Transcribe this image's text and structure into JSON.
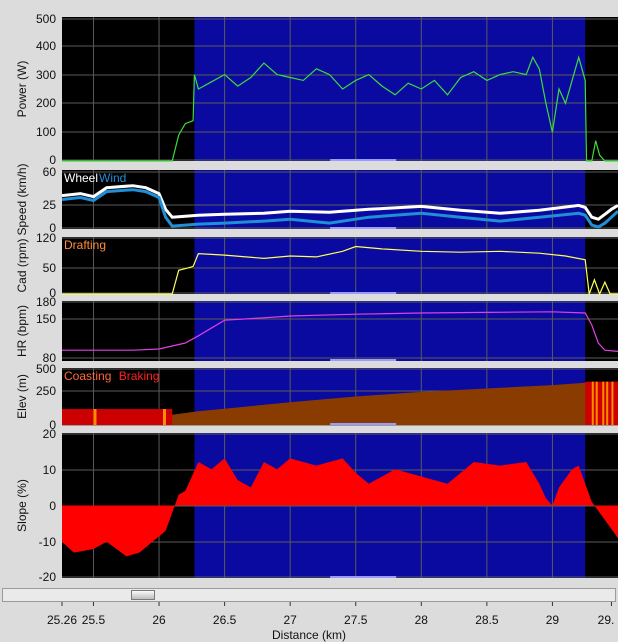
{
  "chart_data": {
    "type": "line",
    "xlabel": "Distance (km)",
    "x_ticks": [
      "25.26",
      "25.5",
      "26",
      "26.5",
      "27",
      "27.5",
      "28",
      "28.5",
      "29",
      "29."
    ],
    "x_range": [
      25.26,
      29.5
    ],
    "selection_range": [
      26.27,
      29.25
    ],
    "panels": [
      {
        "id": "power",
        "ylabel": "Power (W)",
        "ylim": [
          0,
          500
        ],
        "yticks": [
          "500",
          "400",
          "300",
          "200",
          "100",
          "0"
        ],
        "series": [
          {
            "name": "",
            "color": "#3cdc3c",
            "x": [
              25.26,
              26.1,
              26.15,
              26.2,
              26.26,
              26.27,
              26.3,
              26.4,
              26.5,
              26.6,
              26.7,
              26.8,
              26.9,
              27.0,
              27.1,
              27.2,
              27.3,
              27.4,
              27.5,
              27.6,
              27.7,
              27.8,
              27.9,
              28.0,
              28.1,
              28.2,
              28.3,
              28.4,
              28.5,
              28.6,
              28.7,
              28.8,
              28.85,
              28.9,
              28.95,
              29.0,
              29.05,
              29.1,
              29.15,
              29.2,
              29.25,
              29.26,
              29.3,
              29.33,
              29.36,
              29.4,
              29.5
            ],
            "y": [
              0,
              0,
              90,
              130,
              140,
              300,
              250,
              275,
              300,
              260,
              290,
              340,
              300,
              290,
              280,
              320,
              300,
              250,
              280,
              300,
              260,
              230,
              270,
              250,
              280,
              230,
              290,
              310,
              280,
              300,
              310,
              300,
              360,
              320,
              200,
              100,
              250,
              200,
              280,
              360,
              280,
              0,
              0,
              70,
              20,
              0,
              0
            ]
          }
        ]
      },
      {
        "id": "speed",
        "ylabel": "Speed (km/h)",
        "ylim": [
          0,
          60
        ],
        "yticks": [
          "60",
          "25",
          "0"
        ],
        "legend": [
          "Wheel",
          "Wind"
        ],
        "series": [
          {
            "name": "Wheel",
            "color": "#ffffff",
            "x": [
              25.26,
              25.4,
              25.5,
              25.6,
              25.8,
              25.9,
              26.0,
              26.05,
              26.1,
              26.2,
              26.3,
              26.5,
              26.8,
              27.0,
              27.3,
              27.6,
              28.0,
              28.3,
              28.6,
              28.9,
              29.2,
              29.25,
              29.3,
              29.35,
              29.4,
              29.45,
              29.5
            ],
            "y": [
              34,
              36,
              33,
              42,
              44,
              42,
              36,
              20,
              12,
              13,
              14,
              15,
              16,
              18,
              17,
              20,
              23,
              19,
              16,
              19,
              24,
              22,
              12,
              10,
              15,
              20,
              24
            ]
          },
          {
            "name": "Wind",
            "color": "#1f8fd8",
            "x": [
              25.26,
              25.4,
              25.5,
              25.6,
              25.8,
              25.9,
              26.0,
              26.05,
              26.1,
              26.2,
              26.3,
              26.5,
              26.8,
              27.0,
              27.3,
              27.6,
              28.0,
              28.3,
              28.6,
              28.9,
              29.2,
              29.25,
              29.3,
              29.35,
              29.4,
              29.45,
              29.5
            ],
            "y": [
              30,
              32,
              29,
              38,
              40,
              38,
              32,
              12,
              3,
              4,
              5,
              6,
              8,
              10,
              6,
              12,
              16,
              12,
              8,
              12,
              16,
              14,
              4,
              2,
              6,
              12,
              18
            ]
          }
        ]
      },
      {
        "id": "cadence",
        "ylabel": "Cad (rpm)",
        "ylim": [
          0,
          120
        ],
        "yticks": [
          "120",
          "50",
          "0"
        ],
        "legend": [
          "Drafting"
        ],
        "series": [
          {
            "name": "",
            "color": "#ffff55",
            "x": [
              25.26,
              26.1,
              26.15,
              26.22,
              26.26,
              26.3,
              26.5,
              26.8,
              27.0,
              27.2,
              27.4,
              27.5,
              27.7,
              28.0,
              28.3,
              28.6,
              28.9,
              29.1,
              29.25,
              29.28,
              29.32,
              29.36,
              29.4,
              29.44,
              29.5
            ],
            "y": [
              0,
              0,
              50,
              55,
              58,
              85,
              82,
              75,
              80,
              78,
              90,
              100,
              95,
              90,
              88,
              90,
              86,
              80,
              72,
              0,
              30,
              0,
              25,
              0,
              0
            ]
          }
        ]
      },
      {
        "id": "hr",
        "ylabel": "HR (bpm)",
        "ylim": [
          80,
          180
        ],
        "yticks": [
          "180",
          "150",
          "80"
        ],
        "series": [
          {
            "name": "",
            "color": "#e040e0",
            "x": [
              25.26,
              25.8,
              26.0,
              26.2,
              26.3,
              26.5,
              26.8,
              27.0,
              27.5,
              28.0,
              28.5,
              29.0,
              29.25,
              29.3,
              29.35,
              29.4,
              29.5
            ],
            "y": [
              98,
              98,
              100,
              110,
              122,
              148,
              152,
              155,
              158,
              160,
              161,
              162,
              160,
              140,
              110,
              98,
              96
            ]
          }
        ]
      },
      {
        "id": "elev",
        "ylabel": "Elev (m)",
        "ylim": [
          0,
          500
        ],
        "yticks": [
          "500",
          "250",
          "0"
        ],
        "legend": [
          "Coasting",
          "Braking"
        ],
        "series": [
          {
            "name": "",
            "color": "#8a3c00",
            "x": [
              25.26,
              26.1,
              26.3,
              27.0,
              27.5,
              28.0,
              28.5,
              29.0,
              29.25,
              29.5
            ],
            "y": [
              140,
              90,
              120,
              200,
              250,
              290,
              320,
              350,
              370,
              380
            ]
          }
        ]
      },
      {
        "id": "slope",
        "ylabel": "Slope (%)",
        "ylim": [
          -20,
          20
        ],
        "yticks": [
          "20",
          "10",
          "0",
          "-10",
          "-20"
        ],
        "series": [
          {
            "name": "",
            "color": "#ff0000",
            "x": [
              25.26,
              25.35,
              25.5,
              25.6,
              25.75,
              25.85,
              25.95,
              26.05,
              26.1,
              26.15,
              26.2,
              26.3,
              26.4,
              26.5,
              26.6,
              26.7,
              26.8,
              26.9,
              27.0,
              27.2,
              27.4,
              27.5,
              27.6,
              27.8,
              28.0,
              28.2,
              28.4,
              28.6,
              28.8,
              28.9,
              28.95,
              29.0,
              29.05,
              29.15,
              29.2,
              29.25,
              29.3,
              29.4,
              29.5
            ],
            "y": [
              -10,
              -13,
              -12,
              -10,
              -14,
              -13,
              -10,
              -7,
              -2,
              3,
              4,
              12,
              10,
              13,
              7,
              5,
              12,
              10,
              13,
              11,
              13,
              9,
              6,
              10,
              8,
              6,
              12,
              11,
              12,
              6,
              2,
              0,
              5,
              10,
              11,
              6,
              1,
              -4,
              -9
            ]
          }
        ]
      }
    ]
  }
}
